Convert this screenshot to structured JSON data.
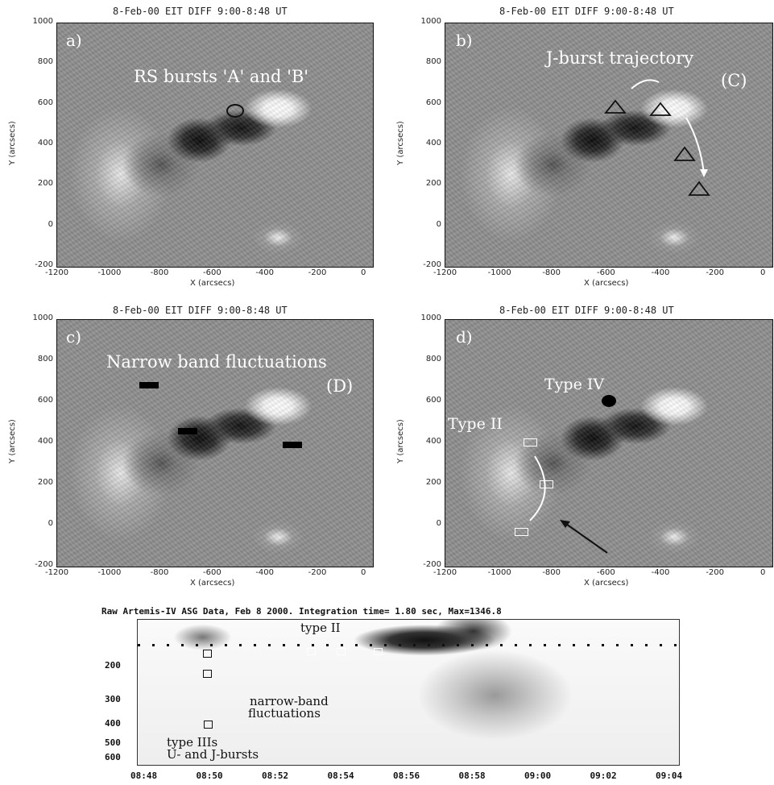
{
  "panels": [
    {
      "title": "8-Feb-00 EIT DIFF 9:00-8:48 UT",
      "label": "a)",
      "annotations": [
        "RS bursts 'A' and 'B'"
      ]
    },
    {
      "title": "8-Feb-00 EIT DIFF 9:00-8:48 UT",
      "label": "b)",
      "annotations": [
        "J-burst trajectory",
        "(C)"
      ]
    },
    {
      "title": "8-Feb-00 EIT DIFF 9:00-8:48 UT",
      "label": "c)",
      "annotations": [
        "Narrow band fluctuations",
        "(D)"
      ]
    },
    {
      "title": "8-Feb-00 EIT DIFF 9:00-8:48 UT",
      "label": "d)",
      "annotations": [
        "Type IV",
        "Type II"
      ]
    }
  ],
  "axes": {
    "ylabel": "Y (arcsecs)",
    "xlabel": "X (arcsecs)",
    "yticks": [
      "1000",
      "800",
      "600",
      "400",
      "200",
      "0",
      "-200"
    ],
    "xticks": [
      "-1200",
      "-1000",
      "-800",
      "-600",
      "-400",
      "-200",
      "0"
    ]
  },
  "spectrogram": {
    "title": "Raw   Artemis-IV  ASG Data, Feb  8 2000. Integration time= 1.80 sec, Max=1346.8",
    "yticks": [
      "200",
      "300",
      "400",
      "500",
      "600"
    ],
    "xticks": [
      "08:48",
      "08:50",
      "08:52",
      "08:54",
      "08:56",
      "08:58",
      "09:00",
      "09:02",
      "09:04"
    ],
    "labels": {
      "type2": "type II",
      "narrow1": "narrow-band",
      "narrow2": "fluctuations",
      "type3": "type IIIs",
      "uj": "U- and J-bursts"
    }
  }
}
